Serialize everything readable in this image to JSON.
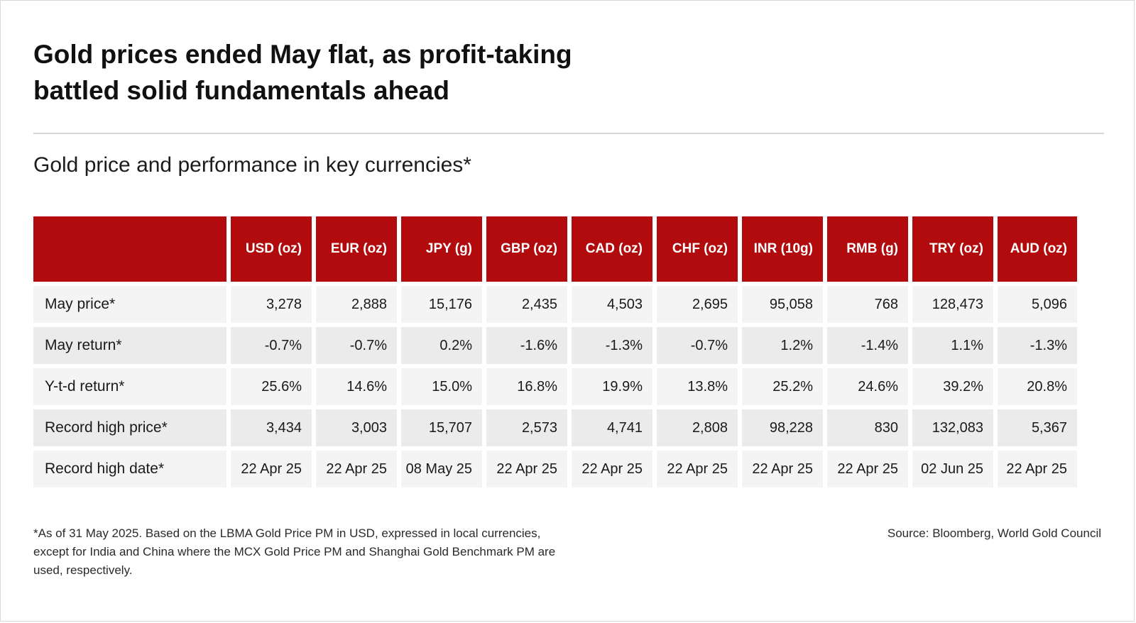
{
  "title_line1": "Gold prices ended May flat, as profit-taking",
  "title_line2": "battled solid fundamentals ahead",
  "subtitle": "Gold price and performance in key currencies*",
  "colors": {
    "header_red": "#b10b0d",
    "row_light": "#f4f4f4",
    "row_dark": "#ebebeb",
    "divider": "#d6d6d6"
  },
  "table": {
    "columns": [
      "USD (oz)",
      "EUR (oz)",
      "JPY (g)",
      "GBP (oz)",
      "CAD (oz)",
      "CHF (oz)",
      "INR (10g)",
      "RMB (g)",
      "TRY (oz)",
      "AUD (oz)"
    ],
    "rows": [
      {
        "label": "May price*",
        "values": [
          "3,278",
          "2,888",
          "15,176",
          "2,435",
          "4,503",
          "2,695",
          "95,058",
          "768",
          "128,473",
          "5,096"
        ]
      },
      {
        "label": "May return*",
        "values": [
          "-0.7%",
          "-0.7%",
          "0.2%",
          "-1.6%",
          "-1.3%",
          "-0.7%",
          "1.2%",
          "-1.4%",
          "1.1%",
          "-1.3%"
        ]
      },
      {
        "label": "Y-t-d return*",
        "values": [
          "25.6%",
          "14.6%",
          "15.0%",
          "16.8%",
          "19.9%",
          "13.8%",
          "25.2%",
          "24.6%",
          "39.2%",
          "20.8%"
        ]
      },
      {
        "label": "Record high price*",
        "values": [
          "3,434",
          "3,003",
          "15,707",
          "2,573",
          "4,741",
          "2,808",
          "98,228",
          "830",
          "132,083",
          "5,367"
        ]
      },
      {
        "label": "Record high date*",
        "values": [
          "22 Apr 25",
          "22 Apr 25",
          "08 May 25",
          "22 Apr 25",
          "22 Apr 25",
          "22 Apr 25",
          "22 Apr 25",
          "22 Apr 25",
          "02 Jun 25",
          "22 Apr 25"
        ]
      }
    ]
  },
  "footnote": "*As of 31 May 2025. Based on the LBMA Gold Price PM in USD, expressed in local currencies, except for India and China where the MCX Gold Price PM and Shanghai Gold Benchmark PM are used, respectively.",
  "source": "Source: Bloomberg, World Gold Council"
}
